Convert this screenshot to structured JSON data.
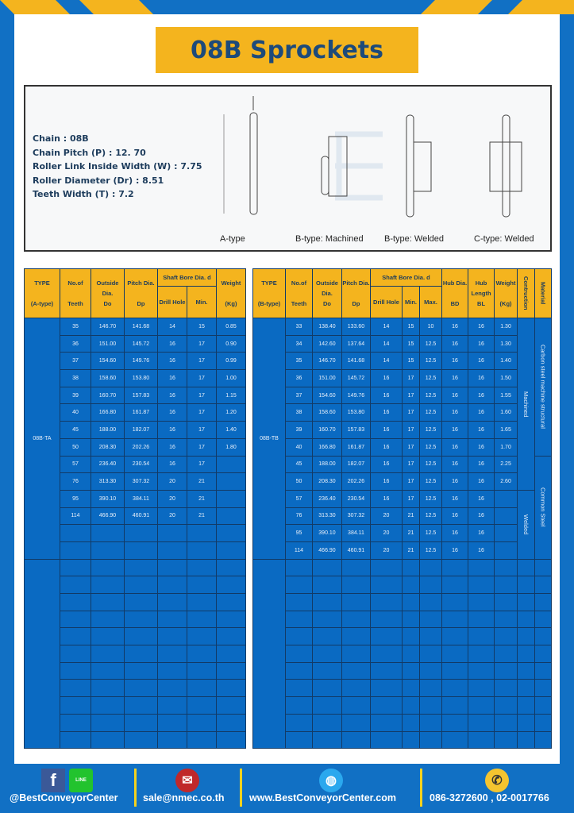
{
  "title": "08B Sprockets",
  "colors": {
    "background": "#1170c4",
    "header": "#f4b41e",
    "cell": "#0a6ac2",
    "title_text": "#1d4a7a"
  },
  "specs": [
    "Chain : 08B",
    "Chain Pitch (P) : 12. 70",
    "Roller Link Inside Width (W) : 7.75",
    "Roller Diameter (Dr) : 8.51",
    "Teeth Width (T) : 7.2"
  ],
  "diagram_captions": [
    "A-type",
    "B-type: Machined",
    "B-type: Welded",
    "C-type: Welded"
  ],
  "table_a": {
    "headers": {
      "type": "TYPE",
      "type_sub": "(A-type)",
      "teeth": "No.of",
      "teeth_sub": "Teeth",
      "outside": "Outside",
      "outside_sub": "Dia.",
      "outside_sym": "Do",
      "pitch": "Pitch Dia.",
      "pitch_sym": "Dp",
      "bore": "Shaft Bore Dia. d",
      "drill": "Drill Hole",
      "min": "Min.",
      "weight": "Weight",
      "weight_sub": "(Kg)"
    },
    "type_label": "08B-TA",
    "rows": [
      [
        "35",
        "146.70",
        "141.68",
        "14",
        "15",
        "0.85"
      ],
      [
        "36",
        "151.00",
        "145.72",
        "16",
        "17",
        "0.90"
      ],
      [
        "37",
        "154.60",
        "149.76",
        "16",
        "17",
        "0.99"
      ],
      [
        "38",
        "158.60",
        "153.80",
        "16",
        "17",
        "1.00"
      ],
      [
        "39",
        "160.70",
        "157.83",
        "16",
        "17",
        "1.15"
      ],
      [
        "40",
        "166.80",
        "161.87",
        "16",
        "17",
        "1.20"
      ],
      [
        "45",
        "188.00",
        "182.07",
        "16",
        "17",
        "1.40"
      ],
      [
        "50",
        "208.30",
        "202.26",
        "16",
        "17",
        "1.80"
      ],
      [
        "57",
        "236.40",
        "230.54",
        "16",
        "17",
        ""
      ],
      [
        "76",
        "313.30",
        "307.32",
        "20",
        "21",
        ""
      ],
      [
        "95",
        "390.10",
        "384.11",
        "20",
        "21",
        ""
      ],
      [
        "114",
        "466.90",
        "460.91",
        "20",
        "21",
        ""
      ]
    ]
  },
  "table_b": {
    "headers": {
      "type": "TYPE",
      "type_sub": "(B-type)",
      "teeth": "No.of",
      "teeth_sub": "Teeth",
      "outside": "Outside",
      "outside_sub": "Dia.",
      "outside_sym": "Do",
      "pitch": "Pitch Dia.",
      "pitch_sym": "Dp",
      "bore": "Shaft Bore Dia. d",
      "drill": "Drill Hole",
      "min": "Min.",
      "max": "Max.",
      "hub_dia": "Hub Dia.",
      "hub_dia_sym": "BD",
      "hub_len": "Hub",
      "hub_len_sub": "Length",
      "hub_len_sym": "BL",
      "weight": "Weight",
      "weight_sub": "(Kg)",
      "construction": "Contruction",
      "material": "Material"
    },
    "type_label": "08B-TB",
    "construction": [
      "Machined",
      "Welded"
    ],
    "material": [
      "Carbon steel  machine structural",
      "Common Steel"
    ],
    "rows": [
      [
        "33",
        "138.40",
        "133.60",
        "14",
        "15",
        "10",
        "16",
        "16",
        "1.30"
      ],
      [
        "34",
        "142.60",
        "137.64",
        "14",
        "15",
        "12.5",
        "16",
        "16",
        "1.30"
      ],
      [
        "35",
        "146.70",
        "141.68",
        "14",
        "15",
        "12.5",
        "16",
        "16",
        "1.40"
      ],
      [
        "36",
        "151.00",
        "145.72",
        "16",
        "17",
        "12.5",
        "16",
        "16",
        "1.50"
      ],
      [
        "37",
        "154.60",
        "149.76",
        "16",
        "17",
        "12.5",
        "16",
        "16",
        "1.55"
      ],
      [
        "38",
        "158.60",
        "153.80",
        "16",
        "17",
        "12.5",
        "16",
        "16",
        "1.60"
      ],
      [
        "39",
        "160.70",
        "157.83",
        "16",
        "17",
        "12.5",
        "16",
        "16",
        "1.65"
      ],
      [
        "40",
        "166.80",
        "161.87",
        "16",
        "17",
        "12.5",
        "16",
        "16",
        "1.70"
      ],
      [
        "45",
        "188.00",
        "182.07",
        "16",
        "17",
        "12.5",
        "16",
        "16",
        "2.25"
      ],
      [
        "50",
        "208.30",
        "202.26",
        "16",
        "17",
        "12.5",
        "16",
        "16",
        "2.60"
      ],
      [
        "57",
        "236.40",
        "230.54",
        "16",
        "17",
        "12.5",
        "16",
        "16",
        ""
      ],
      [
        "76",
        "313.30",
        "307.32",
        "20",
        "21",
        "12.5",
        "16",
        "16",
        ""
      ],
      [
        "95",
        "390.10",
        "384.11",
        "20",
        "21",
        "12.5",
        "16",
        "16",
        ""
      ],
      [
        "114",
        "466.90",
        "460.91",
        "20",
        "21",
        "12.5",
        "16",
        "16",
        ""
      ]
    ]
  },
  "footer": {
    "social": "@BestConveyorCenter",
    "line_badge": "LINE",
    "email": "sale@nmec.co.th",
    "website": "www.BestConveyorCenter.com",
    "phone": "086-3272600 , 02-0017766"
  }
}
